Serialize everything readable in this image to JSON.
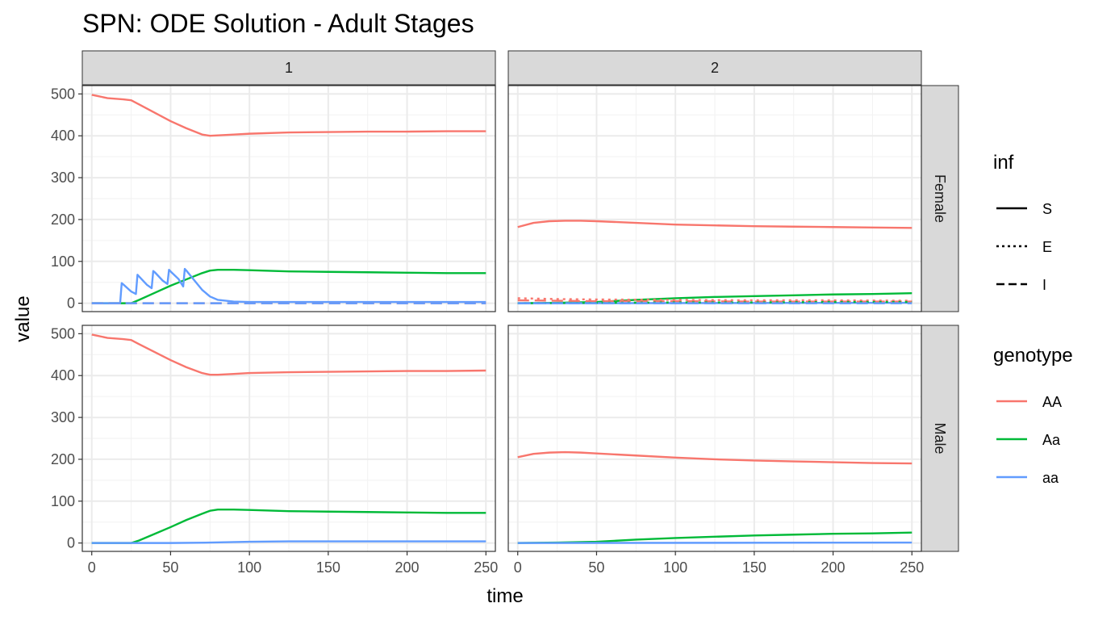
{
  "chart_data": {
    "type": "line",
    "title": "SPN: ODE Solution - Adult Stages",
    "xlabel": "time",
    "ylabel": "value",
    "xlim": [
      -6,
      256
    ],
    "ylim": [
      -20,
      520
    ],
    "xticks": [
      0,
      50,
      100,
      150,
      200,
      250
    ],
    "yticks": [
      0,
      100,
      200,
      300,
      400,
      500
    ],
    "grid": true,
    "column_facets": [
      "1",
      "2"
    ],
    "row_facets": [
      "Female",
      "Male"
    ],
    "legends": {
      "inf": {
        "title": "inf",
        "entries": [
          {
            "label": "S",
            "dash": "solid"
          },
          {
            "label": "E",
            "dash": "dotted"
          },
          {
            "label": "I",
            "dash": "dashed"
          }
        ]
      },
      "genotype": {
        "title": "genotype",
        "entries": [
          {
            "label": "AA",
            "color": "#F8766D"
          },
          {
            "label": "Aa",
            "color": "#00BA38"
          },
          {
            "label": "aa",
            "color": "#619CFF"
          }
        ]
      }
    },
    "panels": [
      {
        "col": "1",
        "row": "Female",
        "series": [
          {
            "genotype": "AA",
            "inf": "S",
            "x": [
              0,
              10,
              20,
              25,
              30,
              40,
              50,
              60,
              70,
              75,
              80,
              90,
              100,
              125,
              150,
              175,
              200,
              225,
              250
            ],
            "y": [
              498,
              490,
              487,
              485,
              475,
              455,
              435,
              418,
              403,
              400,
              401,
              403,
              405,
              408,
              409,
              410,
              410,
              411,
              411
            ]
          },
          {
            "genotype": "Aa",
            "inf": "S",
            "x": [
              0,
              10,
              20,
              25,
              30,
              40,
              50,
              60,
              70,
              75,
              80,
              90,
              100,
              125,
              150,
              175,
              200,
              225,
              250
            ],
            "y": [
              0,
              0,
              0,
              0,
              8,
              25,
              42,
              57,
              72,
              78,
              80,
              80,
              79,
              76,
              75,
              74,
              73,
              72,
              72
            ]
          },
          {
            "genotype": "aa",
            "inf": "S",
            "x": [
              0,
              10,
              18,
              19,
              20,
              25,
              28,
              29,
              30,
              35,
              38,
              39,
              40,
              45,
              48,
              49,
              50,
              55,
              58,
              59,
              60,
              65,
              70,
              75,
              80,
              90,
              100,
              125,
              150,
              200,
              250
            ],
            "y": [
              0,
              0,
              0,
              48,
              45,
              28,
              22,
              68,
              64,
              44,
              36,
              77,
              74,
              54,
              46,
              80,
              76,
              58,
              40,
              82,
              78,
              55,
              32,
              16,
              8,
              4,
              3,
              3,
              3,
              3,
              3
            ]
          },
          {
            "genotype": "AA",
            "inf": "I",
            "x": [
              0,
              250
            ],
            "y": [
              0,
              0
            ]
          },
          {
            "genotype": "aa",
            "inf": "I",
            "x": [
              0,
              250
            ],
            "y": [
              0,
              0
            ]
          }
        ]
      },
      {
        "col": "2",
        "row": "Female",
        "series": [
          {
            "genotype": "AA",
            "inf": "S",
            "x": [
              0,
              10,
              20,
              30,
              40,
              50,
              75,
              100,
              125,
              150,
              175,
              200,
              225,
              250
            ],
            "y": [
              182,
              192,
              196,
              197,
              197,
              196,
              192,
              188,
              186,
              184,
              183,
              182,
              181,
              180
            ]
          },
          {
            "genotype": "Aa",
            "inf": "S",
            "x": [
              0,
              25,
              50,
              75,
              100,
              125,
              150,
              175,
              200,
              225,
              250
            ],
            "y": [
              0,
              1,
              3,
              8,
              12,
              15,
              17,
              19,
              21,
              22,
              24
            ]
          },
          {
            "genotype": "aa",
            "inf": "S",
            "x": [
              0,
              250
            ],
            "y": [
              0,
              1
            ]
          },
          {
            "genotype": "AA",
            "inf": "E",
            "x": [
              0,
              25,
              50,
              100,
              150,
              200,
              250
            ],
            "y": [
              12,
              10,
              9,
              8,
              7,
              7,
              6
            ]
          },
          {
            "genotype": "AA",
            "inf": "I",
            "x": [
              0,
              25,
              50,
              100,
              150,
              200,
              250
            ],
            "y": [
              7,
              6,
              5,
              5,
              4,
              4,
              4
            ]
          },
          {
            "genotype": "Aa",
            "inf": "E",
            "x": [
              0,
              50,
              100,
              150,
              200,
              250
            ],
            "y": [
              0,
              1,
              2,
              2,
              3,
              3
            ]
          },
          {
            "genotype": "aa",
            "inf": "I",
            "x": [
              0,
              250
            ],
            "y": [
              0,
              0
            ]
          }
        ]
      },
      {
        "col": "1",
        "row": "Male",
        "series": [
          {
            "genotype": "AA",
            "inf": "S",
            "x": [
              0,
              10,
              20,
              25,
              30,
              40,
              50,
              60,
              70,
              75,
              80,
              90,
              100,
              125,
              150,
              175,
              200,
              225,
              250
            ],
            "y": [
              498,
              490,
              487,
              485,
              475,
              456,
              437,
              420,
              406,
              402,
              402,
              404,
              406,
              408,
              409,
              410,
              411,
              411,
              412
            ]
          },
          {
            "genotype": "Aa",
            "inf": "S",
            "x": [
              0,
              10,
              20,
              25,
              30,
              40,
              50,
              60,
              70,
              75,
              80,
              90,
              100,
              125,
              150,
              175,
              200,
              225,
              250
            ],
            "y": [
              0,
              0,
              0,
              0,
              6,
              22,
              38,
              55,
              70,
              77,
              80,
              80,
              79,
              76,
              75,
              74,
              73,
              72,
              72
            ]
          },
          {
            "genotype": "aa",
            "inf": "S",
            "x": [
              0,
              50,
              75,
              100,
              125,
              150,
              200,
              250
            ],
            "y": [
              0,
              0,
              1,
              3,
              4,
              4,
              4,
              4
            ]
          }
        ]
      },
      {
        "col": "2",
        "row": "Male",
        "series": [
          {
            "genotype": "AA",
            "inf": "S",
            "x": [
              0,
              10,
              20,
              30,
              40,
              50,
              75,
              100,
              125,
              150,
              175,
              200,
              225,
              250
            ],
            "y": [
              205,
              213,
              216,
              217,
              216,
              214,
              209,
              204,
              200,
              197,
              195,
              193,
              191,
              190
            ]
          },
          {
            "genotype": "Aa",
            "inf": "S",
            "x": [
              0,
              25,
              50,
              75,
              100,
              125,
              150,
              175,
              200,
              225,
              250
            ],
            "y": [
              0,
              1,
              3,
              8,
              12,
              15,
              18,
              20,
              22,
              23,
              25
            ]
          },
          {
            "genotype": "aa",
            "inf": "S",
            "x": [
              0,
              250
            ],
            "y": [
              0,
              1
            ]
          }
        ]
      }
    ]
  }
}
